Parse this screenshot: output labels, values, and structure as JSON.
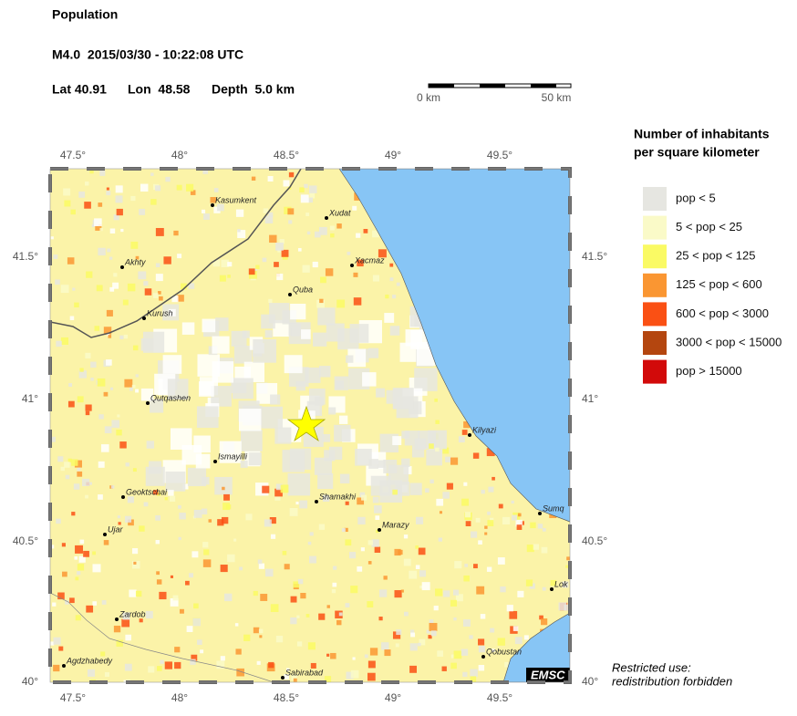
{
  "header": {
    "title": "Population",
    "event": "M4.0  2015/03/30 - 10:22:08 UTC",
    "lat": "Lat 40.91",
    "lon": "Lon  48.58",
    "depth": "Depth  5.0 km"
  },
  "scale_bar": {
    "start": "0 km",
    "end": "50 km"
  },
  "map": {
    "x_ticks": [
      "47.5°",
      "48°",
      "48.5°",
      "49°",
      "49.5°"
    ],
    "y_ticks": [
      "41.5°",
      "41°",
      "40.5°",
      "40°"
    ],
    "cities": [
      "Kasumkent",
      "Xudat",
      "Akhty",
      "Xacmaz",
      "Quba",
      "Kurush",
      "Qutqashen",
      "Kilyazi",
      "Ismayilli",
      "Geoktschai",
      "Shamakhi",
      "Ujar",
      "Marazy",
      "Sumq",
      "Lok",
      "Zardob",
      "Agdzhabedy",
      "Qobustan",
      "Sabirabad"
    ],
    "watermark": "EMSC"
  },
  "legend": {
    "title_lines": [
      "Number of inhabitants",
      "per square kilometer"
    ],
    "items": [
      {
        "label": "pop < 5",
        "color": "#e6e6e1"
      },
      {
        "label": "5 < pop < 25",
        "color": "#fafac8"
      },
      {
        "label": "25 < pop < 125",
        "color": "#fafa64"
      },
      {
        "label": "125 < pop < 600",
        "color": "#fa9632"
      },
      {
        "label": "600 < pop < 3000",
        "color": "#fa5014"
      },
      {
        "label": "3000 < pop < 15000",
        "color": "#b4460f"
      },
      {
        "label": "pop > 15000",
        "color": "#d20a0a"
      }
    ]
  },
  "footer": {
    "lines": [
      "Restricted use:",
      "redistribution forbidden"
    ]
  }
}
